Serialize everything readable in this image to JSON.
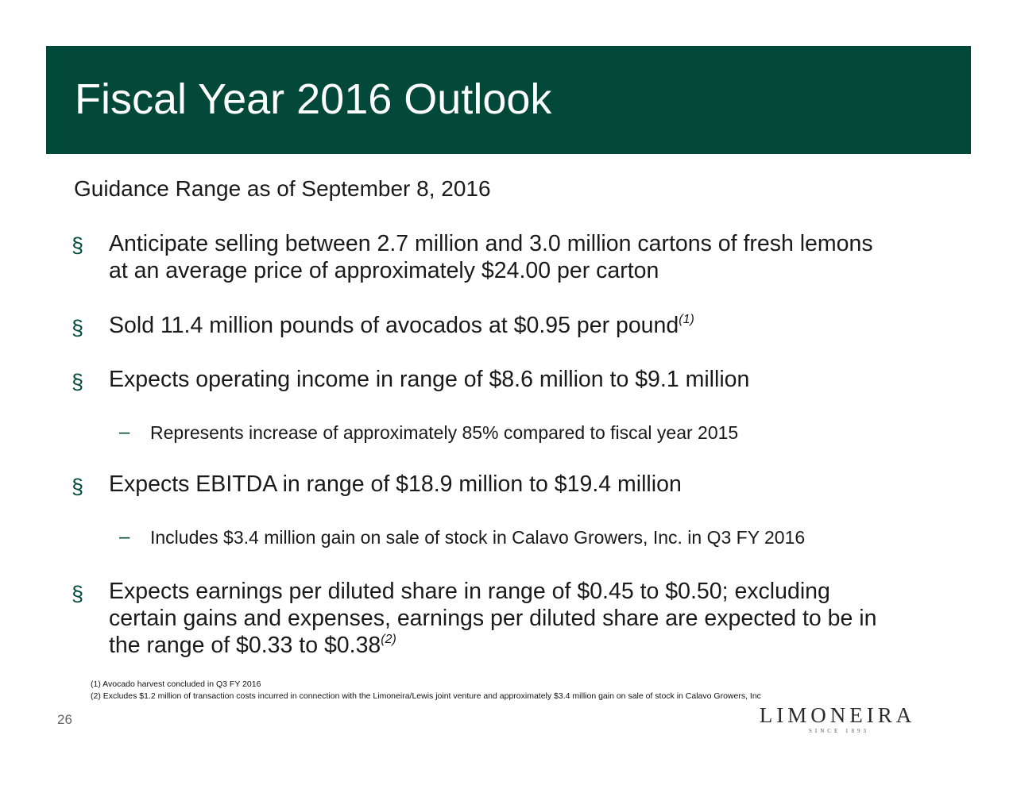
{
  "slide": {
    "title": "Fiscal Year 2016 Outlook",
    "subtitle": "Guidance Range as of September 8, 2016",
    "page_number": "26"
  },
  "bullet_glyph": "§",
  "dash_glyph": "–",
  "bullets": [
    {
      "lines": [
        "Anticipate selling between 2.7 million and 3.0 million cartons of fresh lemons",
        "at an average price of approximately $24.00 per carton"
      ]
    },
    {
      "text": "Sold 11.4 million pounds of avocados at $0.95 per pound",
      "footnote_ref": "(1)"
    },
    {
      "text": "Expects operating income in range of $8.6 million to $9.1 million",
      "sub": "Represents increase of approximately 85% compared to fiscal year 2015"
    },
    {
      "text": "Expects EBITDA in range of $18.9 million to $19.4 million",
      "sub": "Includes $3.4 million gain on sale of stock in Calavo Growers, Inc. in Q3 FY 2016"
    },
    {
      "lines": [
        "Expects earnings per diluted share in range of $0.45 to $0.50; excluding",
        "certain gains and expenses, earnings per diluted share are expected to be in",
        "the range of $0.33 to $0.38"
      ],
      "footnote_ref": "(2)"
    }
  ],
  "footnotes": [
    "(1) Avocado harvest concluded in Q3 FY 2016",
    "(2) Excludes $1.2 million of transaction costs incurred in connection with the Limoneira/Lewis joint venture and approximately $3.4 million gain on sale of stock in Calavo Growers, Inc"
  ],
  "logo": {
    "wordmark": "LIMONEIRA",
    "tagline": "SINCE 1893"
  },
  "colors": {
    "title_bar": "#03493a",
    "bullet": "#03493a",
    "text": "#1a1a1a"
  }
}
